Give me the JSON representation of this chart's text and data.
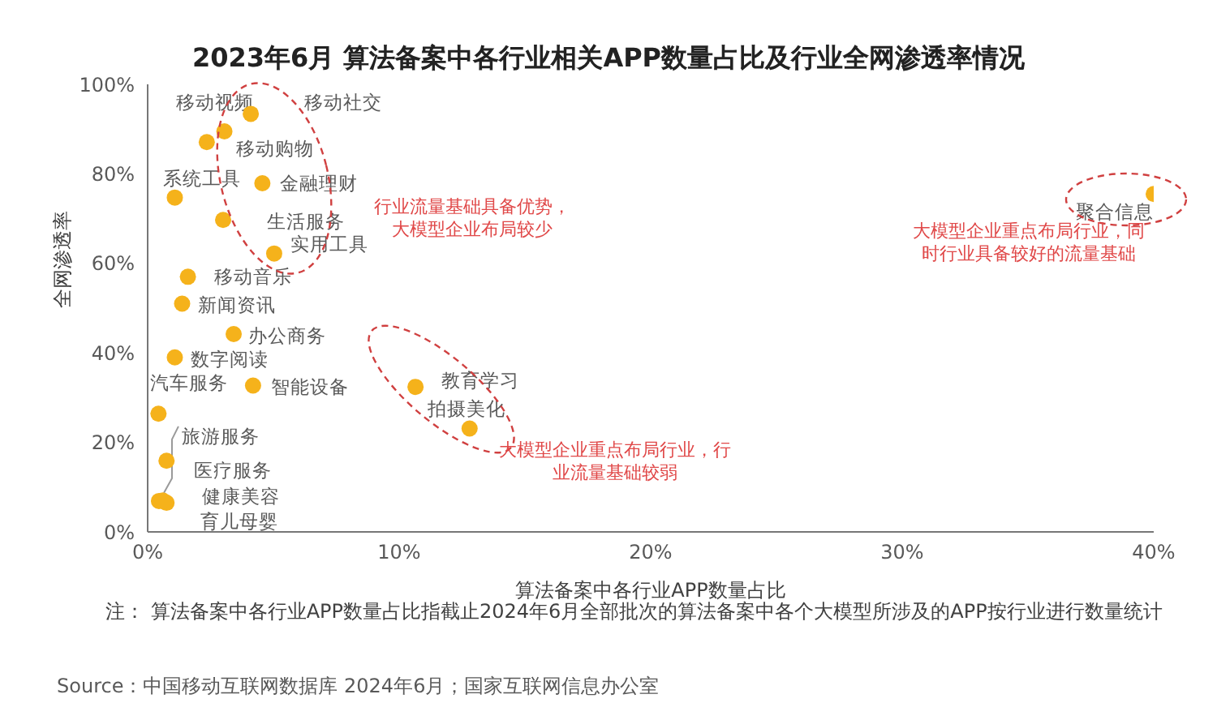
{
  "chart_data": {
    "type": "scatter",
    "title": "2023年6月 算法备案中各行业相关APP数量占比及行业全网渗透率情况",
    "xlabel": "算法备案中各行业APP数量占比",
    "ylabel": "全网渗透率",
    "x": [
      4.1,
      3.05,
      2.35,
      4.56,
      1.08,
      3.0,
      5.03,
      1.6,
      1.37,
      3.42,
      1.08,
      4.19,
      0.43,
      10.65,
      12.8,
      0.75,
      0.45,
      0.75,
      0.6,
      40
    ],
    "values": [
      93.4,
      89.5,
      87.1,
      77.9,
      74.7,
      69.7,
      62.2,
      57,
      51,
      44.2,
      39,
      32.7,
      26.4,
      32.4,
      23.1,
      15.9,
      6.9,
      6.5,
      7,
      75.5
    ],
    "color": "#f5b21b",
    "marker": "circle",
    "xlim": [
      0,
      40
    ],
    "xticks": [
      {
        "value": 0,
        "label": "0%"
      },
      {
        "value": 10,
        "label": "10%"
      },
      {
        "value": 20,
        "label": "20%"
      },
      {
        "value": 30,
        "label": "30%"
      },
      {
        "value": 40,
        "label": "40%"
      }
    ],
    "ylim": [
      0,
      100
    ],
    "yticks": [
      {
        "value": 0,
        "label": "0%"
      },
      {
        "value": 20,
        "label": "20%"
      },
      {
        "value": 40,
        "label": "40%"
      },
      {
        "value": 60,
        "label": "60%"
      },
      {
        "value": 80,
        "label": "80%"
      },
      {
        "value": 100,
        "label": "100%"
      }
    ],
    "annotations": [
      {
        "text": "移动社交",
        "x": 4.1,
        "y": 93.4
      },
      {
        "text": "移动视频",
        "x": 3.05,
        "y": 89.5
      },
      {
        "text": "移动购物",
        "x": 2.35,
        "y": 87.1
      },
      {
        "text": "金融理财",
        "x": 4.56,
        "y": 77.9
      },
      {
        "text": "系统工具",
        "x": 1.08,
        "y": 74.7
      },
      {
        "text": "生活服务",
        "x": 3.0,
        "y": 69.7
      },
      {
        "text": "实用工具",
        "x": 5.03,
        "y": 62.2
      },
      {
        "text": "移动音乐",
        "x": 1.6,
        "y": 57
      },
      {
        "text": "新闻资讯",
        "x": 1.37,
        "y": 51
      },
      {
        "text": "办公商务",
        "x": 3.42,
        "y": 44.2
      },
      {
        "text": "数字阅读",
        "x": 1.08,
        "y": 39
      },
      {
        "text": "智能设备",
        "x": 4.19,
        "y": 32.7
      },
      {
        "text": "汽车服务",
        "x": 0.43,
        "y": 26.4
      },
      {
        "text": "教育学习",
        "x": 10.65,
        "y": 32.4
      },
      {
        "text": "拍摄美化",
        "x": 12.8,
        "y": 23.1
      },
      {
        "text": "医疗服务",
        "x": 0.75,
        "y": 15.9
      },
      {
        "text": "旅游服务",
        "x": 0.45,
        "y": 6.9
      },
      {
        "text": "健康美容",
        "x": 0.75,
        "y": 6.5
      },
      {
        "text": "育儿母婴",
        "x": 0.6,
        "y": 7
      },
      {
        "text": "聚合信息",
        "x": 40,
        "y": 75.5
      },
      "行业流量基础具备优势，大模型企业布局较少",
      "大模型企业重点布局行业，行业流量基础较弱",
      "大模型企业重点布局行业，同时行业具备较好的流量基础",
      "注：  算法备案中各行业APP数量占比指截止2024年6月全部批次的算法备案中各个大模型所涉及的APP按行业进行数量统计",
      "Source：中国移动互联网数据库 2024年6月；国家互联网信息办公室"
    ]
  }
}
